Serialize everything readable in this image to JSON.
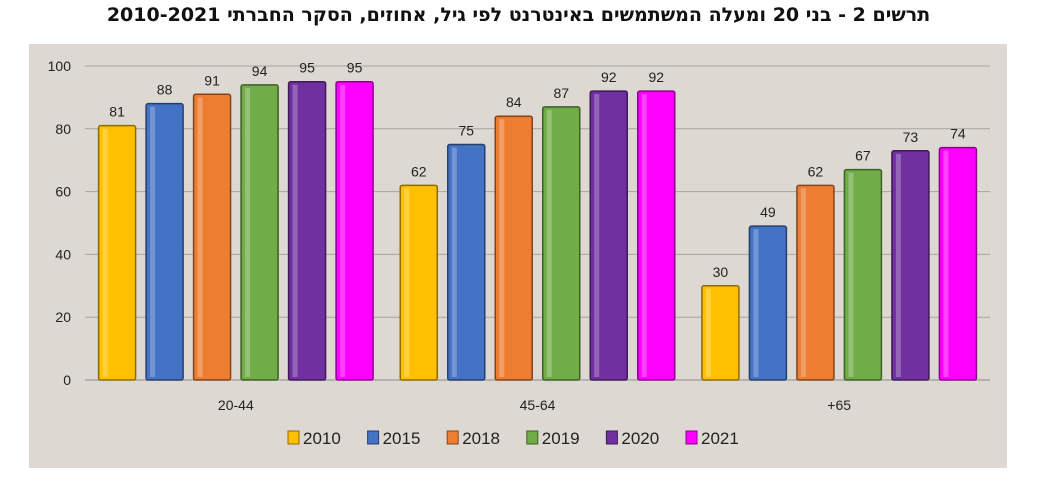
{
  "chart_data": {
    "type": "bar",
    "title": "תרשים 2 - בני 20 ומעלה המשתמשים באינטרנט לפי גיל, אחוזים, הסקר החברתי 2010-2021",
    "categories": [
      "20-44",
      "45-64",
      "+65"
    ],
    "series": [
      {
        "name": "2010",
        "color": "#FFC000",
        "values": [
          81,
          62,
          30
        ]
      },
      {
        "name": "2015",
        "color": "#4472C4",
        "values": [
          88,
          75,
          49
        ]
      },
      {
        "name": "2018",
        "color": "#ED7D31",
        "values": [
          91,
          84,
          62
        ]
      },
      {
        "name": "2019",
        "color": "#70AD47",
        "values": [
          94,
          87,
          67
        ]
      },
      {
        "name": "2020",
        "color": "#7030A0",
        "values": [
          95,
          92,
          73
        ]
      },
      {
        "name": "2021",
        "color": "#FF00FF",
        "values": [
          95,
          92,
          74
        ]
      }
    ],
    "ylim": [
      0,
      100
    ],
    "yticks": [
      0,
      20,
      40,
      60,
      80,
      100
    ],
    "grid": true,
    "legend": "bottom",
    "plot_background": "#DDD9D2"
  }
}
